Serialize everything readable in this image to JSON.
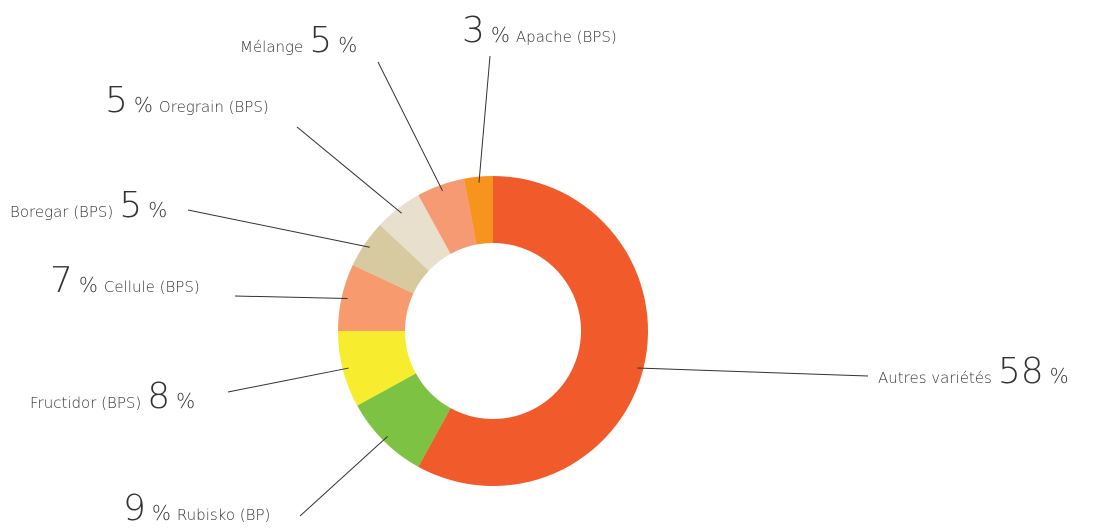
{
  "chart_data": {
    "type": "pie",
    "donut": true,
    "categories": [
      "Autres variétés",
      "Rubisko (BP)",
      "Fructidor (BPS)",
      "Cellule (BPS)",
      "Boregar (BPS)",
      "Oregrain (BPS)",
      "Mélange",
      "Apache (BPS)"
    ],
    "values": [
      58,
      9,
      8,
      7,
      5,
      5,
      5,
      3
    ],
    "unit": "%",
    "colors": [
      "#f15a2b",
      "#7dc242",
      "#f7ec2e",
      "#f79a6e",
      "#d8caa0",
      "#e8e0cc",
      "#f59a72",
      "#f7941d"
    ]
  }
}
